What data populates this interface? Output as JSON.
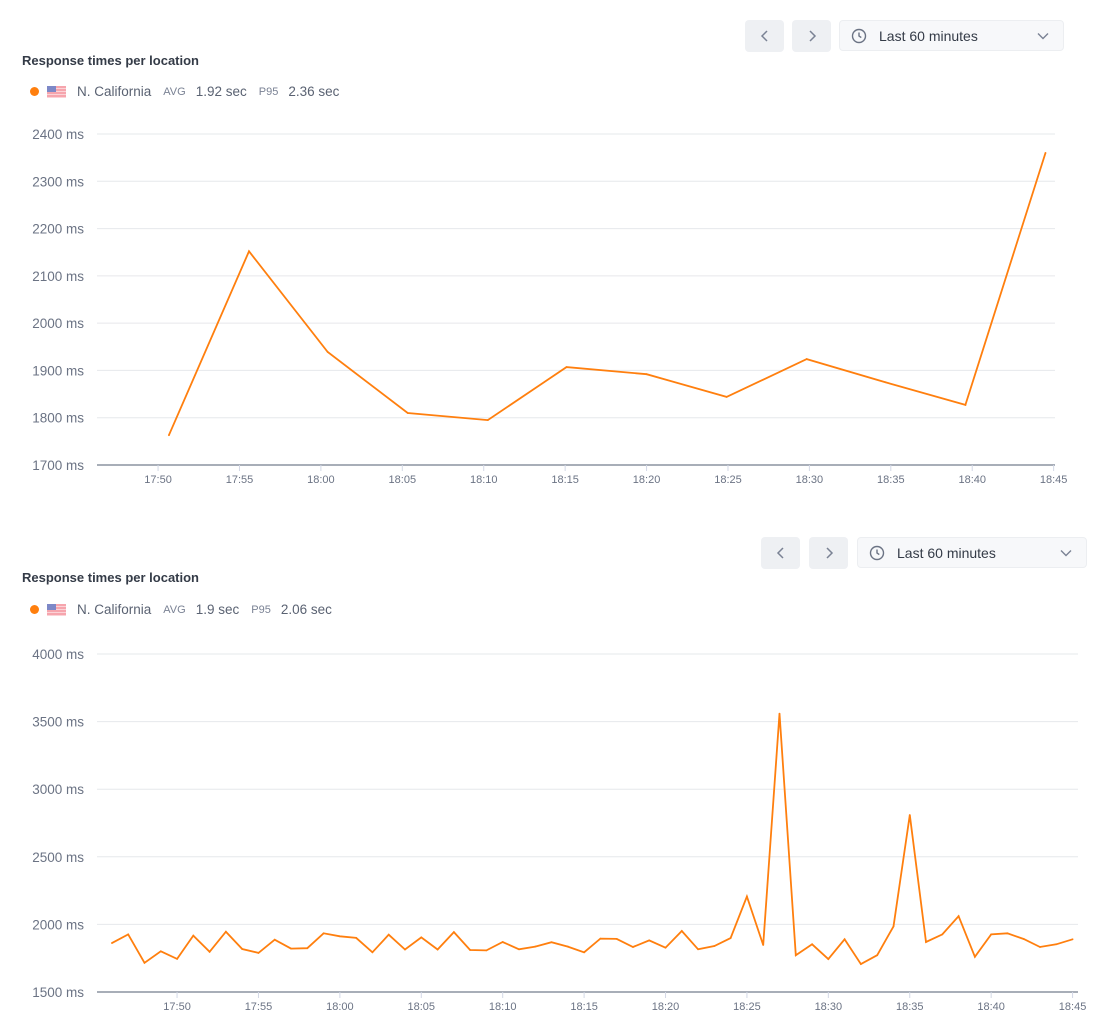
{
  "colors": {
    "series": "#ff7f0e",
    "grid": "#e6e8eb",
    "axis": "#8b93a1",
    "tick_text": "#6b7384"
  },
  "panels": [
    {
      "controls": {
        "prev_icon": "chevron-left-icon",
        "next_icon": "chevron-right-icon",
        "clock_icon": "clock-icon",
        "range_label": "Last 60 minutes",
        "dropdown_icon": "chevron-down-icon"
      },
      "title": "Response times per location",
      "legend": {
        "location": "N. California",
        "flag": "us-flag-icon",
        "avg_label": "AVG",
        "avg_value": "1.92 sec",
        "p95_label": "P95",
        "p95_value": "2.36 sec"
      }
    },
    {
      "controls": {
        "prev_icon": "chevron-left-icon",
        "next_icon": "chevron-right-icon",
        "clock_icon": "clock-icon",
        "range_label": "Last 60 minutes",
        "dropdown_icon": "chevron-down-icon"
      },
      "title": "Response times per location",
      "legend": {
        "location": "N. California",
        "flag": "us-flag-icon",
        "avg_label": "AVG",
        "avg_value": "1.9 sec",
        "p95_label": "P95",
        "p95_value": "2.06 sec"
      }
    }
  ],
  "chart_data": [
    {
      "type": "line",
      "title": "Response times per location",
      "grid": true,
      "ylim": [
        1700,
        2400
      ],
      "yticks": [
        1700,
        1800,
        1900,
        2000,
        2100,
        2200,
        2300,
        2400
      ],
      "ytick_labels": [
        "1700 ms",
        "1800 ms",
        "1900 ms",
        "2000 ms",
        "2100 ms",
        "2200 ms",
        "2300 ms",
        "2400 ms"
      ],
      "xlim": [
        "17:46:15",
        "18:45:05"
      ],
      "xticks": [
        "17:50",
        "17:55",
        "18:00",
        "18:05",
        "18:10",
        "18:15",
        "18:20",
        "18:25",
        "18:30",
        "18:35",
        "18:40",
        "18:45"
      ],
      "series": [
        {
          "name": "N. California",
          "x": [
            "17:50:40",
            "17:55:35",
            "18:00:25",
            "18:05:20",
            "18:10:15",
            "18:15:05",
            "18:20:00",
            "18:24:55",
            "18:29:50",
            "18:34:40",
            "18:39:35",
            "18:44:30"
          ],
          "y": [
            1763,
            2152,
            1939,
            1810,
            1795,
            1907,
            1892,
            1844,
            1924,
            1875,
            1827,
            2360
          ]
        }
      ]
    },
    {
      "type": "line",
      "title": "Response times per location",
      "grid": true,
      "ylim": [
        1500,
        4000
      ],
      "yticks": [
        1500,
        2000,
        2500,
        3000,
        3500,
        4000
      ],
      "ytick_labels": [
        "1500 ms",
        "2000 ms",
        "2500 ms",
        "3000 ms",
        "3500 ms",
        "4000 ms"
      ],
      "xlim": [
        "17:45:05",
        "18:45:20"
      ],
      "xticks": [
        "17:50",
        "17:55",
        "18:00",
        "18:05",
        "18:10",
        "18:15",
        "18:20",
        "18:25",
        "18:30",
        "18:35",
        "18:40",
        "18:45"
      ],
      "series": [
        {
          "name": "N. California",
          "x": [
            "17:46",
            "17:47",
            "17:48",
            "17:49",
            "17:50",
            "17:51",
            "17:52",
            "17:53",
            "17:54",
            "17:55",
            "17:56",
            "17:57",
            "17:58",
            "17:59",
            "18:00",
            "18:01",
            "18:02",
            "18:03",
            "18:04",
            "18:05",
            "18:06",
            "18:07",
            "18:08",
            "18:09",
            "18:10",
            "18:11",
            "18:12",
            "18:13",
            "18:14",
            "18:15",
            "18:16",
            "18:17",
            "18:18",
            "18:19",
            "18:20",
            "18:21",
            "18:22",
            "18:23",
            "18:24",
            "18:25",
            "18:26",
            "18:27",
            "18:28",
            "18:29",
            "18:30",
            "18:31",
            "18:32",
            "18:33",
            "18:34",
            "18:35",
            "18:36",
            "18:37",
            "18:38",
            "18:39",
            "18:40",
            "18:41",
            "18:42",
            "18:43",
            "18:44",
            "18:45"
          ],
          "y": [
            1862,
            1926,
            1716,
            1801,
            1745,
            1917,
            1797,
            1946,
            1818,
            1789,
            1887,
            1821,
            1824,
            1934,
            1912,
            1900,
            1794,
            1924,
            1814,
            1904,
            1814,
            1943,
            1811,
            1808,
            1870,
            1816,
            1836,
            1868,
            1836,
            1794,
            1895,
            1893,
            1833,
            1882,
            1828,
            1951,
            1816,
            1840,
            1899,
            2206,
            1848,
            3559,
            1772,
            1853,
            1743,
            1890,
            1706,
            1772,
            1985,
            2809,
            1870,
            1926,
            2061,
            1760,
            1926,
            1934,
            1892,
            1833,
            1853,
            1890
          ]
        }
      ]
    }
  ]
}
